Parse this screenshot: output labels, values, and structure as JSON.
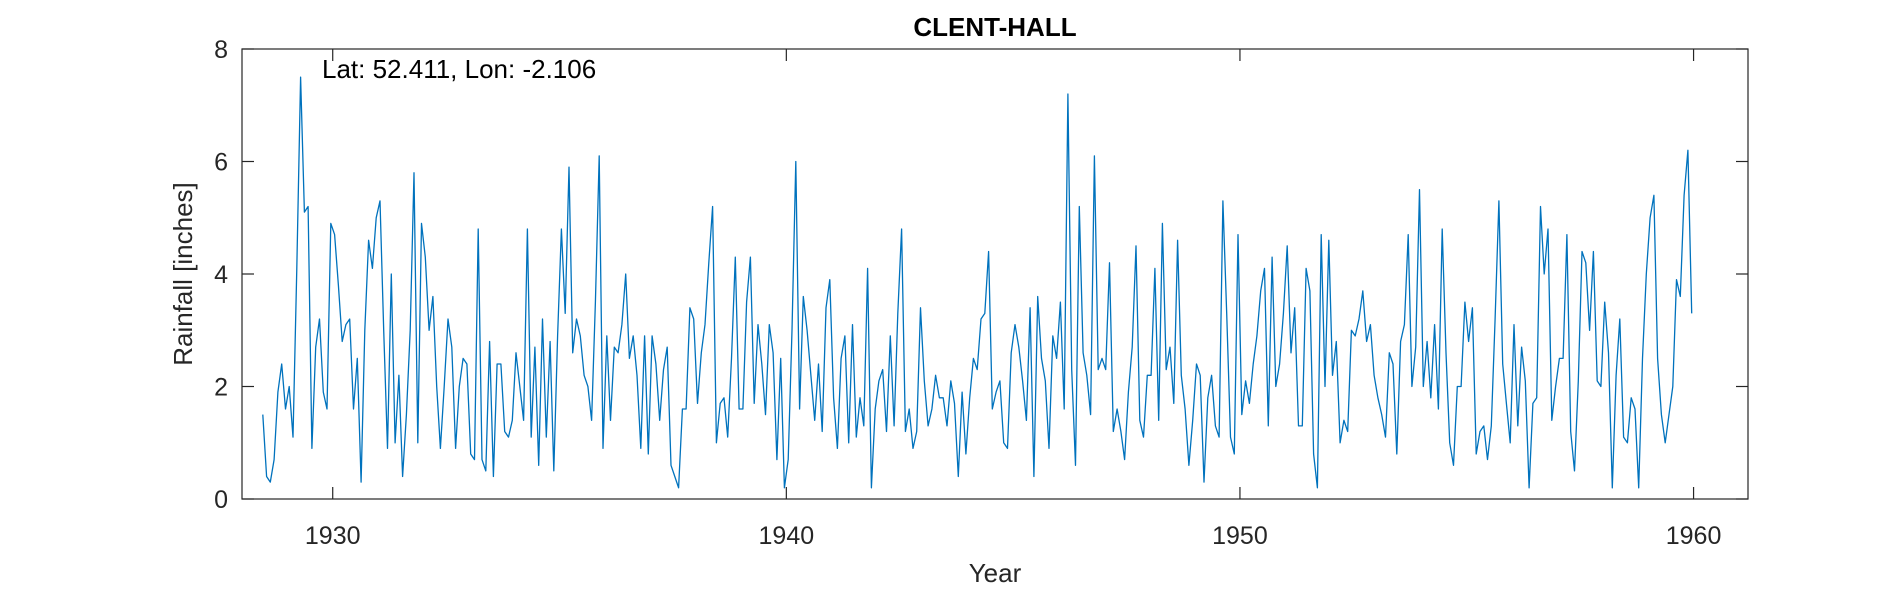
{
  "chart_data": {
    "type": "line",
    "title": "CLENT-HALL",
    "annotation": "Lat: 52.411, Lon: -2.106",
    "xlabel": "Year",
    "ylabel": "Rainfall [inches]",
    "xlim": [
      1928,
      1961.2
    ],
    "ylim": [
      0,
      8
    ],
    "xticks": [
      1930,
      1940,
      1950,
      1960
    ],
    "yticks": [
      0,
      2,
      4,
      6,
      8
    ],
    "grid": false,
    "x_start": 1928.458,
    "x_step": 0.0833333,
    "series": [
      {
        "color": "#0072BD",
        "values": [
          1.5,
          0.4,
          0.3,
          0.7,
          1.9,
          2.4,
          1.6,
          2.0,
          1.1,
          4.1,
          7.5,
          5.1,
          5.2,
          0.9,
          2.7,
          3.2,
          1.9,
          1.6,
          4.9,
          4.7,
          3.8,
          2.8,
          3.1,
          3.2,
          1.6,
          2.5,
          0.3,
          3.0,
          4.6,
          4.1,
          5.0,
          5.3,
          3.0,
          0.9,
          4.0,
          1.0,
          2.2,
          0.4,
          1.5,
          3.0,
          5.8,
          1.0,
          4.9,
          4.3,
          3.0,
          3.6,
          2.0,
          0.9,
          2.0,
          3.2,
          2.7,
          0.9,
          2.0,
          2.5,
          2.4,
          0.8,
          0.7,
          4.8,
          0.7,
          0.5,
          2.8,
          0.4,
          2.4,
          2.4,
          1.2,
          1.1,
          1.4,
          2.6,
          2.0,
          1.4,
          4.8,
          1.1,
          2.7,
          0.6,
          3.2,
          1.1,
          2.8,
          0.5,
          2.9,
          4.8,
          3.3,
          5.9,
          2.6,
          3.2,
          2.9,
          2.2,
          2.0,
          1.4,
          3.5,
          6.1,
          0.9,
          2.9,
          1.4,
          2.7,
          2.6,
          3.1,
          4.0,
          2.5,
          2.9,
          2.2,
          0.9,
          2.9,
          0.8,
          2.9,
          2.4,
          1.4,
          2.3,
          2.7,
          0.6,
          0.4,
          0.2,
          1.6,
          1.6,
          3.4,
          3.2,
          1.7,
          2.6,
          3.1,
          4.2,
          5.2,
          1.0,
          1.7,
          1.8,
          1.1,
          2.5,
          4.3,
          1.6,
          1.6,
          3.5,
          4.3,
          1.7,
          3.1,
          2.4,
          1.5,
          3.1,
          2.6,
          0.7,
          2.5,
          0.2,
          0.7,
          3.0,
          6.0,
          1.6,
          3.6,
          3.0,
          2.2,
          1.4,
          2.4,
          1.2,
          3.4,
          3.9,
          1.8,
          0.9,
          2.5,
          2.9,
          1.0,
          3.1,
          1.1,
          1.8,
          1.3,
          4.1,
          0.2,
          1.6,
          2.1,
          2.3,
          1.2,
          2.9,
          1.3,
          3.3,
          4.8,
          1.2,
          1.6,
          0.9,
          1.2,
          3.4,
          2.1,
          1.3,
          1.6,
          2.2,
          1.8,
          1.8,
          1.3,
          2.1,
          1.7,
          0.4,
          1.9,
          0.8,
          1.8,
          2.5,
          2.3,
          3.2,
          3.3,
          4.4,
          1.6,
          1.9,
          2.1,
          1.0,
          0.9,
          2.6,
          3.1,
          2.7,
          2.1,
          1.4,
          3.4,
          0.4,
          3.6,
          2.5,
          2.1,
          0.9,
          2.9,
          2.5,
          3.5,
          1.6,
          7.2,
          2.3,
          0.6,
          5.2,
          2.6,
          2.2,
          1.5,
          6.1,
          2.3,
          2.5,
          2.3,
          4.2,
          1.2,
          1.6,
          1.2,
          0.7,
          1.9,
          2.7,
          4.5,
          1.4,
          1.1,
          2.2,
          2.2,
          4.1,
          1.4,
          4.9,
          2.3,
          2.7,
          1.7,
          4.6,
          2.2,
          1.6,
          0.6,
          1.4,
          2.4,
          2.2,
          0.3,
          1.8,
          2.2,
          1.3,
          1.1,
          5.3,
          3.3,
          1.1,
          0.8,
          4.7,
          1.5,
          2.1,
          1.7,
          2.4,
          2.9,
          3.7,
          4.1,
          1.3,
          4.3,
          2.0,
          2.4,
          3.3,
          4.5,
          2.6,
          3.4,
          1.3,
          1.3,
          4.1,
          3.7,
          0.8,
          0.2,
          4.7,
          2.0,
          4.6,
          2.2,
          2.8,
          1.0,
          1.4,
          1.2,
          3.0,
          2.9,
          3.2,
          3.7,
          2.8,
          3.1,
          2.2,
          1.8,
          1.5,
          1.1,
          2.6,
          2.4,
          0.8,
          2.8,
          3.1,
          4.7,
          2.0,
          2.7,
          5.5,
          2.0,
          2.8,
          1.8,
          3.1,
          1.6,
          4.8,
          2.6,
          1.0,
          0.6,
          2.0,
          2.0,
          3.5,
          2.8,
          3.4,
          0.8,
          1.2,
          1.3,
          0.7,
          1.3,
          3.2,
          5.3,
          2.4,
          1.7,
          1.0,
          3.1,
          1.3,
          2.7,
          2.1,
          0.2,
          1.7,
          1.8,
          5.2,
          4.0,
          4.8,
          1.4,
          2.0,
          2.5,
          2.5,
          4.7,
          1.2,
          0.5,
          2.1,
          4.4,
          4.2,
          3.0,
          4.4,
          2.1,
          2.0,
          3.5,
          2.6,
          0.2,
          2.2,
          3.2,
          1.1,
          1.0,
          1.8,
          1.6,
          0.2,
          2.5,
          4.0,
          5.0,
          5.4,
          2.5,
          1.5,
          1.0,
          1.5,
          2.0,
          3.9,
          3.6,
          5.4,
          6.2,
          3.3
        ]
      }
    ]
  }
}
